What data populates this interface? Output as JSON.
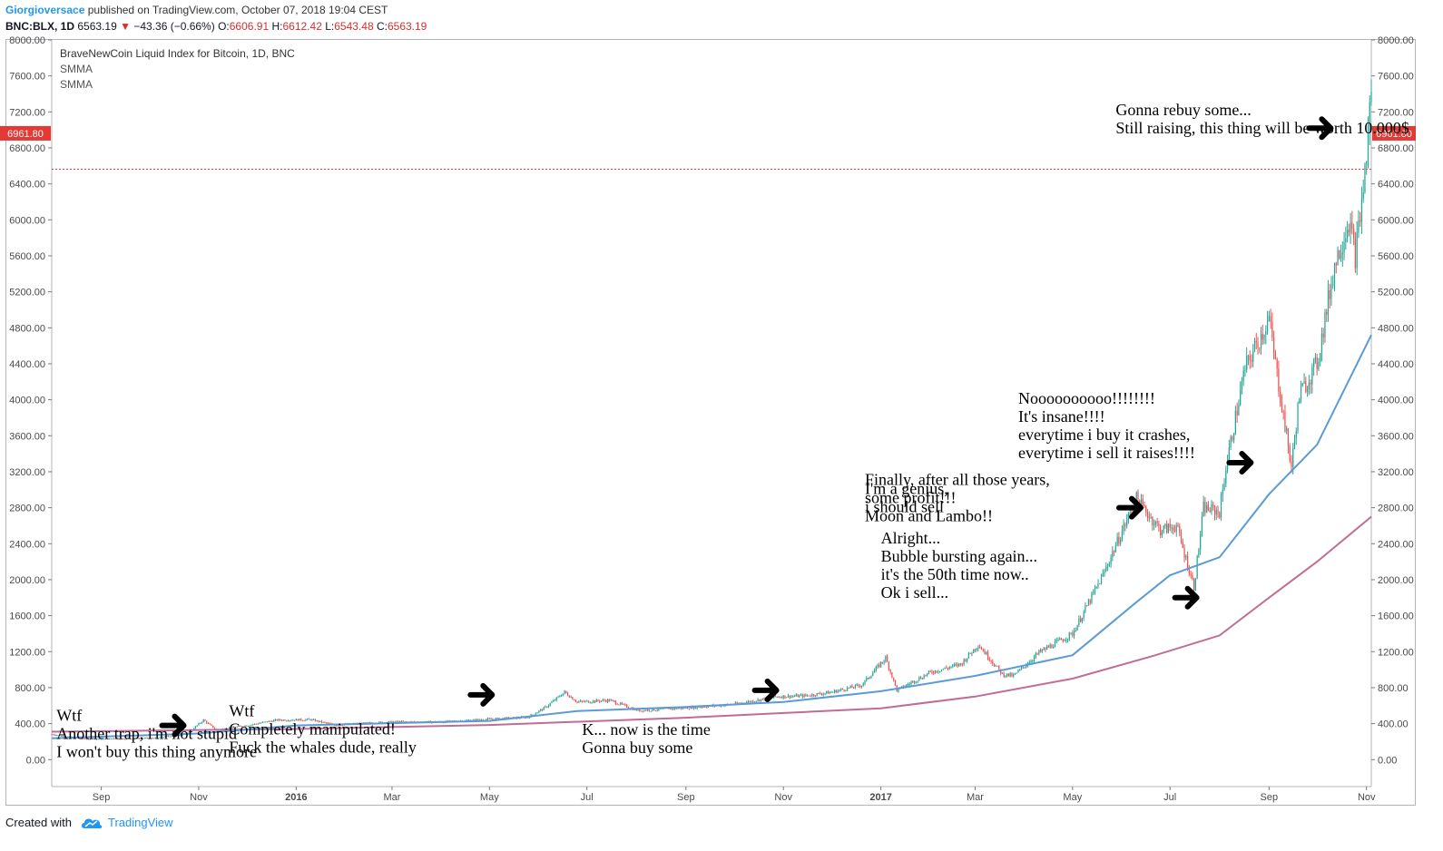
{
  "header": {
    "author": "Giorgioversace",
    "published_text": "published on TradingView.com, October 07, 2018 19:04 CEST",
    "symbol_line": "BNC:BLX, 1D",
    "last": "6563.19",
    "change": "−43.36 (−0.66%)",
    "open_label": "O:",
    "open": "6606.91",
    "high_label": "H:",
    "high": "6612.42",
    "low_label": "L:",
    "low": "6543.48",
    "close_label": "C:",
    "close": "6563.19"
  },
  "footer": {
    "created_with": "Created with",
    "brand": "TradingView"
  },
  "colors": {
    "up": "#26a69a",
    "down": "#ef5350",
    "smma_fast": "#5b9bd5",
    "smma_slow": "#c06c94",
    "price_line": "#e53935",
    "annotation": "#000000"
  },
  "chart_data": {
    "type": "candlestick",
    "title": "BraveNewCoin Liquid Index for Bitcoin, 1D, BNC",
    "indicators": [
      "SMMA",
      "SMMA"
    ],
    "y_ticks": [
      0,
      400,
      800,
      1200,
      1600,
      2000,
      2400,
      2800,
      3200,
      3600,
      4000,
      4400,
      4800,
      5200,
      5600,
      6000,
      6400,
      6800,
      7200,
      7600,
      8000
    ],
    "y_tick_labels": [
      "0.00",
      "400.00",
      "800.00",
      "1200.00",
      "1600.00",
      "2000.00",
      "2400.00",
      "2800.00",
      "3200.00",
      "3600.00",
      "4000.00",
      "4400.00",
      "4800.00",
      "5200.00",
      "5600.00",
      "6000.00",
      "6400.00",
      "6800.00",
      "7200.00",
      "7600.00",
      "8000.00"
    ],
    "ylim": [
      -300,
      8000
    ],
    "x_range": [
      "2015-08-01",
      "2017-11-04"
    ],
    "x_ticks": [
      {
        "date": "2015-09-01",
        "label": "Sep",
        "bold": false
      },
      {
        "date": "2015-11-01",
        "label": "Nov",
        "bold": false
      },
      {
        "date": "2016-01-01",
        "label": "2016",
        "bold": true
      },
      {
        "date": "2016-03-01",
        "label": "Mar",
        "bold": false
      },
      {
        "date": "2016-05-01",
        "label": "May",
        "bold": false
      },
      {
        "date": "2016-07-01",
        "label": "Jul",
        "bold": false
      },
      {
        "date": "2016-09-01",
        "label": "Sep",
        "bold": false
      },
      {
        "date": "2016-11-01",
        "label": "Nov",
        "bold": false
      },
      {
        "date": "2017-01-01",
        "label": "2017",
        "bold": true
      },
      {
        "date": "2017-03-01",
        "label": "Mar",
        "bold": false
      },
      {
        "date": "2017-05-01",
        "label": "May",
        "bold": false
      },
      {
        "date": "2017-07-01",
        "label": "Jul",
        "bold": false
      },
      {
        "date": "2017-09-01",
        "label": "Sep",
        "bold": false
      },
      {
        "date": "2017-11-01",
        "label": "Nov",
        "bold": false
      }
    ],
    "price_points": [
      [
        "2015-08-01",
        282
      ],
      [
        "2015-08-20",
        230
      ],
      [
        "2015-09-15",
        232
      ],
      [
        "2015-10-05",
        240
      ],
      [
        "2015-10-25",
        290
      ],
      [
        "2015-11-04",
        440
      ],
      [
        "2015-11-12",
        330
      ],
      [
        "2015-12-01",
        380
      ],
      [
        "2015-12-20",
        440
      ],
      [
        "2016-01-10",
        445
      ],
      [
        "2016-01-25",
        385
      ],
      [
        "2016-03-01",
        420
      ],
      [
        "2016-04-01",
        418
      ],
      [
        "2016-05-01",
        450
      ],
      [
        "2016-05-25",
        470
      ],
      [
        "2016-06-05",
        580
      ],
      [
        "2016-06-17",
        750
      ],
      [
        "2016-06-25",
        640
      ],
      [
        "2016-07-15",
        660
      ],
      [
        "2016-08-02",
        545
      ],
      [
        "2016-09-01",
        575
      ],
      [
        "2016-10-01",
        615
      ],
      [
        "2016-10-28",
        700
      ],
      [
        "2016-11-15",
        710
      ],
      [
        "2016-12-01",
        750
      ],
      [
        "2016-12-20",
        830
      ],
      [
        "2017-01-04",
        1130
      ],
      [
        "2017-01-11",
        770
      ],
      [
        "2017-02-01",
        970
      ],
      [
        "2017-02-20",
        1060
      ],
      [
        "2017-03-03",
        1280
      ],
      [
        "2017-03-18",
        950
      ],
      [
        "2017-03-25",
        930
      ],
      [
        "2017-04-10",
        1190
      ],
      [
        "2017-05-01",
        1400
      ],
      [
        "2017-05-20",
        2050
      ],
      [
        "2017-05-26",
        2300
      ],
      [
        "2017-06-10",
        2900
      ],
      [
        "2017-06-25",
        2550
      ],
      [
        "2017-07-05",
        2600
      ],
      [
        "2017-07-16",
        1920
      ],
      [
        "2017-07-22",
        2800
      ],
      [
        "2017-08-01",
        2750
      ],
      [
        "2017-08-05",
        3250
      ],
      [
        "2017-08-17",
        4350
      ],
      [
        "2017-09-01",
        4900
      ],
      [
        "2017-09-05",
        4400
      ],
      [
        "2017-09-15",
        3250
      ],
      [
        "2017-09-20",
        4050
      ],
      [
        "2017-10-01",
        4400
      ],
      [
        "2017-10-12",
        5500
      ],
      [
        "2017-10-21",
        6000
      ],
      [
        "2017-10-25",
        5600
      ],
      [
        "2017-10-29",
        6200
      ],
      [
        "2017-11-01",
        6700
      ],
      [
        "2017-11-04",
        7500
      ]
    ],
    "smma_fast": [
      [
        "2015-08-01",
        238
      ],
      [
        "2015-11-01",
        290
      ],
      [
        "2016-01-01",
        380
      ],
      [
        "2016-05-01",
        430
      ],
      [
        "2016-06-25",
        540
      ],
      [
        "2016-09-01",
        585
      ],
      [
        "2016-11-01",
        640
      ],
      [
        "2017-01-01",
        760
      ],
      [
        "2017-03-01",
        930
      ],
      [
        "2017-05-01",
        1160
      ],
      [
        "2017-06-10",
        1750
      ],
      [
        "2017-07-01",
        2050
      ],
      [
        "2017-08-01",
        2250
      ],
      [
        "2017-09-01",
        2950
      ],
      [
        "2017-10-01",
        3500
      ],
      [
        "2017-11-04",
        4720
      ]
    ],
    "smma_slow": [
      [
        "2015-08-01",
        310
      ],
      [
        "2016-01-01",
        340
      ],
      [
        "2016-05-01",
        385
      ],
      [
        "2016-09-01",
        465
      ],
      [
        "2017-01-01",
        570
      ],
      [
        "2017-03-01",
        700
      ],
      [
        "2017-05-01",
        900
      ],
      [
        "2017-06-20",
        1150
      ],
      [
        "2017-08-01",
        1380
      ],
      [
        "2017-09-01",
        1800
      ],
      [
        "2017-10-01",
        2200
      ],
      [
        "2017-11-04",
        2700
      ]
    ],
    "current_price": 6961.8,
    "current_price_label": "6961.80",
    "horizontal_line": 6563.19,
    "annotations": [
      {
        "id": "wtf-trap",
        "at": [
          "2015-08-04",
          30
        ],
        "lines": [
          "Wtf",
          "Another trap, i'm not stupid",
          "I won't buy this thing anymore"
        ]
      },
      {
        "id": "wtf-manipulated",
        "at": [
          "2015-11-20",
          80
        ],
        "lines": [
          "Wtf",
          "Completely manipulated!",
          "Fuck the whales dude, really"
        ]
      },
      {
        "id": "k-now",
        "at": [
          "2016-06-28",
          75
        ],
        "lines": [
          "K... now is the time",
          "Gonna buy some"
        ]
      },
      {
        "id": "finally-profit",
        "at": [
          "2016-12-22",
          2650
        ],
        "lines": [
          "Finally, after all those years,",
          "some profit!!!",
          "Moon and Lambo!!"
        ]
      },
      {
        "id": "genius",
        "at": [
          "2016-12-22",
          2750
        ],
        "lines": [
          "I'm a genius,",
          "i should sell"
        ]
      },
      {
        "id": "alright",
        "at": [
          "2017-01-01",
          1800
        ],
        "lines": [
          "Alright...",
          "Bubble bursting again...",
          "it's the 50th time now..",
          "Ok i sell..."
        ]
      },
      {
        "id": "nooo",
        "at": [
          "2017-03-28",
          3350
        ],
        "lines": [
          "Noooooooooo!!!!!!!!",
          "It's insane!!!!",
          "everytime i buy it crashes,",
          "everytime i sell it raises!!!!"
        ]
      },
      {
        "id": "rebuy",
        "at": [
          "2017-05-28",
          6960
        ],
        "lines": [
          "Gonna rebuy some...",
          "Still raising, this thing will be worth 10.000$"
        ]
      }
    ],
    "arrows": [
      [
        "2015-10-17",
        380
      ],
      [
        "2016-04-27",
        720
      ],
      [
        "2016-10-22",
        770
      ],
      [
        "2017-06-07",
        2800
      ],
      [
        "2017-07-12",
        1800
      ],
      [
        "2017-08-15",
        3300
      ],
      [
        "2017-10-04",
        7020
      ]
    ]
  }
}
